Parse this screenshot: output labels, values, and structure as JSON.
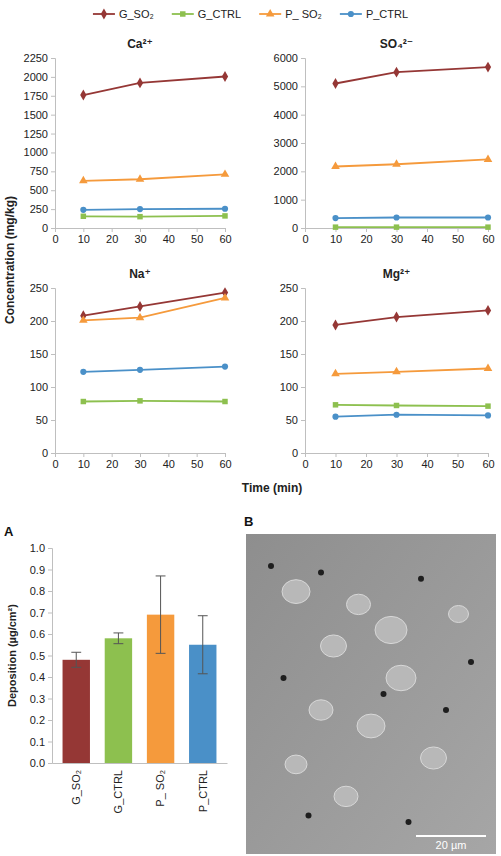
{
  "figure": {
    "y_label": "Concentration (mg/kg)",
    "x_label": "Time (min)"
  },
  "chart_data": [
    {
      "type": "line",
      "title": "Ca²⁺",
      "legend": "top",
      "x": [
        10,
        30,
        60
      ],
      "xlim": [
        0,
        60
      ],
      "xticks": [
        0,
        10,
        20,
        30,
        40,
        50,
        60
      ],
      "ylim": [
        0,
        2250
      ],
      "yticks": [
        0,
        250,
        500,
        750,
        1000,
        1250,
        1500,
        1750,
        2000,
        2250
      ],
      "series": [
        {
          "name": "G_SO₂",
          "color": "#953735",
          "marker": "diamond",
          "values": [
            1760,
            1920,
            2005
          ]
        },
        {
          "name": "G_CTRL",
          "color": "#8dc04f",
          "marker": "square",
          "values": [
            155,
            150,
            160
          ]
        },
        {
          "name": "P_ SO₂",
          "color": "#f59a3c",
          "marker": "triangle",
          "values": [
            625,
            645,
            710
          ]
        },
        {
          "name": "P_CTRL",
          "color": "#4a90c8",
          "marker": "circle",
          "values": [
            240,
            250,
            255
          ]
        }
      ]
    },
    {
      "type": "line",
      "title": "SO₄²⁻",
      "x": [
        10,
        30,
        60
      ],
      "xlim": [
        0,
        60
      ],
      "xticks": [
        0,
        10,
        20,
        30,
        40,
        50,
        60
      ],
      "ylim": [
        0,
        6000
      ],
      "yticks": [
        0,
        1000,
        2000,
        3000,
        4000,
        5000,
        6000
      ],
      "series": [
        {
          "name": "G_SO₂",
          "color": "#953735",
          "marker": "diamond",
          "values": [
            5100,
            5500,
            5680
          ]
        },
        {
          "name": "G_CTRL",
          "color": "#8dc04f",
          "marker": "square",
          "values": [
            30,
            30,
            30
          ]
        },
        {
          "name": "P_ SO₂",
          "color": "#f59a3c",
          "marker": "triangle",
          "values": [
            2170,
            2250,
            2420
          ]
        },
        {
          "name": "P_CTRL",
          "color": "#4a90c8",
          "marker": "circle",
          "values": [
            350,
            370,
            370
          ]
        }
      ]
    },
    {
      "type": "line",
      "title": "Na⁺",
      "x": [
        10,
        30,
        60
      ],
      "xlim": [
        0,
        60
      ],
      "xticks": [
        0,
        10,
        20,
        30,
        40,
        50,
        60
      ],
      "ylim": [
        0,
        250
      ],
      "yticks": [
        0,
        50,
        100,
        150,
        200,
        250
      ],
      "series": [
        {
          "name": "G_SO₂",
          "color": "#953735",
          "marker": "diamond",
          "values": [
            208,
            222,
            243
          ]
        },
        {
          "name": "G_CTRL",
          "color": "#8dc04f",
          "marker": "square",
          "values": [
            78,
            79,
            78
          ]
        },
        {
          "name": "P_ SO₂",
          "color": "#f59a3c",
          "marker": "triangle",
          "values": [
            201,
            205,
            235
          ]
        },
        {
          "name": "P_CTRL",
          "color": "#4a90c8",
          "marker": "circle",
          "values": [
            123,
            126,
            131
          ]
        }
      ]
    },
    {
      "type": "line",
      "title": "Mg²⁺",
      "x": [
        10,
        30,
        60
      ],
      "xlim": [
        0,
        60
      ],
      "xticks": [
        0,
        10,
        20,
        30,
        40,
        50,
        60
      ],
      "ylim": [
        0,
        250
      ],
      "yticks": [
        0,
        50,
        100,
        150,
        200,
        250
      ],
      "series": [
        {
          "name": "G_SO₂",
          "color": "#953735",
          "marker": "diamond",
          "values": [
            194,
            206,
            216
          ]
        },
        {
          "name": "G_CTRL",
          "color": "#8dc04f",
          "marker": "square",
          "values": [
            73,
            72,
            71
          ]
        },
        {
          "name": "P_ SO₂",
          "color": "#f59a3c",
          "marker": "triangle",
          "values": [
            120,
            123,
            128
          ]
        },
        {
          "name": "P_CTRL",
          "color": "#4a90c8",
          "marker": "circle",
          "values": [
            55,
            58,
            57
          ]
        }
      ]
    },
    {
      "type": "bar",
      "panel": "A",
      "y_label": "Deposition (µg/cm²)",
      "categories": [
        "G_SO₂",
        "G_CTRL",
        "P_ SO₂",
        "P_CTRL"
      ],
      "values": [
        0.48,
        0.58,
        0.69,
        0.55
      ],
      "errors": [
        0.035,
        0.025,
        0.18,
        0.135
      ],
      "colors": [
        "#953735",
        "#8dc04f",
        "#f59a3c",
        "#4a90c8"
      ],
      "ylim": [
        0,
        1.0
      ],
      "yticks": [
        {
          "value": 0,
          "label": "0.0"
        },
        0.1,
        0.2,
        0.3,
        0.4,
        0.5,
        0.6,
        0.7,
        0.8,
        0.9,
        {
          "value": 1.0,
          "label": "1.0"
        }
      ]
    }
  ],
  "image_panel": {
    "panel": "B",
    "scale_bar": "20 µm"
  }
}
